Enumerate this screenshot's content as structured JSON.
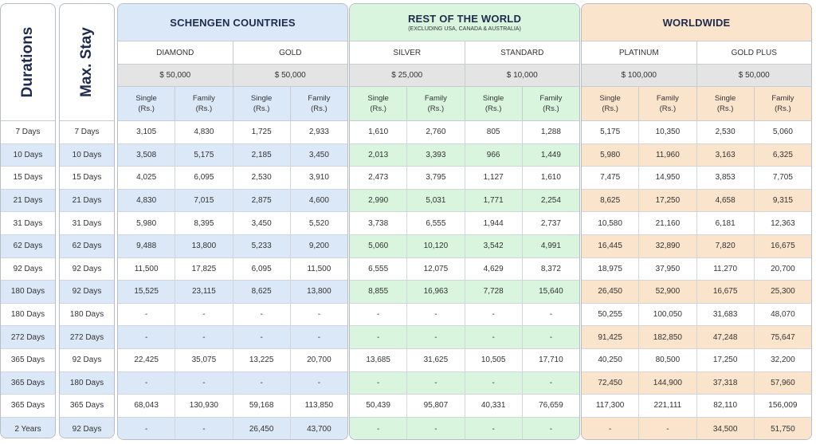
{
  "durations_header": "Durations",
  "maxstay_header": "Max. Stay",
  "rows": [
    {
      "d": "7 Days",
      "m": "7 Days"
    },
    {
      "d": "10 Days",
      "m": "10 Days"
    },
    {
      "d": "15 Days",
      "m": "15 Days"
    },
    {
      "d": "21 Days",
      "m": "21 Days"
    },
    {
      "d": "31 Days",
      "m": "31 Days"
    },
    {
      "d": "62 Days",
      "m": "62 Days"
    },
    {
      "d": "92 Days",
      "m": "92 Days"
    },
    {
      "d": "180 Days",
      "m": "92 Days"
    },
    {
      "d": "180 Days",
      "m": "180 Days"
    },
    {
      "d": "272 Days",
      "m": "272 Days"
    },
    {
      "d": "365 Days",
      "m": "92 Days"
    },
    {
      "d": "365 Days",
      "m": "180 Days"
    },
    {
      "d": "365 Days",
      "m": "365 Days"
    },
    {
      "d": "2 Years",
      "m": "92 Days"
    }
  ],
  "sub_labels": {
    "single_1": "Single",
    "family_1": "Family",
    "unit": "(Rs.)"
  },
  "groups": [
    {
      "title": "SCHENGEN COUNTRIES",
      "subtitle": "",
      "theme": "blue",
      "plans": [
        {
          "name": "DIAMOND",
          "amount": "$ 50,000"
        },
        {
          "name": "GOLD",
          "amount": "$ 50,000"
        }
      ],
      "values": [
        [
          "3,105",
          "4,830",
          "1,725",
          "2,933"
        ],
        [
          "3,508",
          "5,175",
          "2,185",
          "3,450"
        ],
        [
          "4,025",
          "6,095",
          "2,530",
          "3,910"
        ],
        [
          "4,830",
          "7,015",
          "2,875",
          "4,600"
        ],
        [
          "5,980",
          "8,395",
          "3,450",
          "5,520"
        ],
        [
          "9,488",
          "13,800",
          "5,233",
          "9,200"
        ],
        [
          "11,500",
          "17,825",
          "6,095",
          "11,500"
        ],
        [
          "15,525",
          "23,115",
          "8,625",
          "13,800"
        ],
        [
          "-",
          "-",
          "-",
          "-"
        ],
        [
          "-",
          "-",
          "-",
          "-"
        ],
        [
          "22,425",
          "35,075",
          "13,225",
          "20,700"
        ],
        [
          "-",
          "-",
          "-",
          "-"
        ],
        [
          "68,043",
          "130,930",
          "59,168",
          "113,850"
        ],
        [
          "-",
          "-",
          "26,450",
          "43,700"
        ]
      ]
    },
    {
      "title": "REST OF THE WORLD",
      "subtitle": "(EXCLUDING USA, CANADA & AUSTRALIA)",
      "theme": "green",
      "plans": [
        {
          "name": "SILVER",
          "amount": "$ 25,000"
        },
        {
          "name": "STANDARD",
          "amount": "$ 10,000"
        }
      ],
      "values": [
        [
          "1,610",
          "2,760",
          "805",
          "1,288"
        ],
        [
          "2,013",
          "3,393",
          "966",
          "1,449"
        ],
        [
          "2,473",
          "3,795",
          "1,127",
          "1,610"
        ],
        [
          "2,990",
          "5,031",
          "1,771",
          "2,254"
        ],
        [
          "3,738",
          "6,555",
          "1,944",
          "2,737"
        ],
        [
          "5,060",
          "10,120",
          "3,542",
          "4,991"
        ],
        [
          "6,555",
          "12,075",
          "4,629",
          "8,372"
        ],
        [
          "8,855",
          "16,963",
          "7,728",
          "15,640"
        ],
        [
          "-",
          "-",
          "-",
          "-"
        ],
        [
          "-",
          "-",
          "-",
          "-"
        ],
        [
          "13,685",
          "31,625",
          "10,505",
          "17,710"
        ],
        [
          "-",
          "-",
          "-",
          "-"
        ],
        [
          "50,439",
          "95,807",
          "40,331",
          "76,659"
        ],
        [
          "-",
          "-",
          "-",
          "-"
        ]
      ]
    },
    {
      "title": "WORLDWIDE",
      "subtitle": "",
      "theme": "orange",
      "plans": [
        {
          "name": "PLATINUM",
          "amount": "$ 100,000"
        },
        {
          "name": "GOLD PLUS",
          "amount": "$ 50,000"
        }
      ],
      "values": [
        [
          "5,175",
          "10,350",
          "2,530",
          "5,060"
        ],
        [
          "5,980",
          "11,960",
          "3,163",
          "6,325"
        ],
        [
          "7,475",
          "14,950",
          "3,853",
          "7,705"
        ],
        [
          "8,625",
          "17,250",
          "4,658",
          "9,315"
        ],
        [
          "10,580",
          "21,160",
          "6,181",
          "12,363"
        ],
        [
          "16,445",
          "32,890",
          "7,820",
          "16,675"
        ],
        [
          "18,975",
          "37,950",
          "11,270",
          "20,700"
        ],
        [
          "26,450",
          "52,900",
          "16,675",
          "25,300"
        ],
        [
          "50,255",
          "100,050",
          "31,683",
          "48,070"
        ],
        [
          "91,425",
          "182,850",
          "47,248",
          "75,647"
        ],
        [
          "40,250",
          "80,500",
          "17,250",
          "32,200"
        ],
        [
          "72,450",
          "144,900",
          "37,318",
          "57,960"
        ],
        [
          "117,300",
          "221,111",
          "82,110",
          "156,009"
        ],
        [
          "-",
          "-",
          "34,500",
          "51,750"
        ]
      ]
    }
  ]
}
